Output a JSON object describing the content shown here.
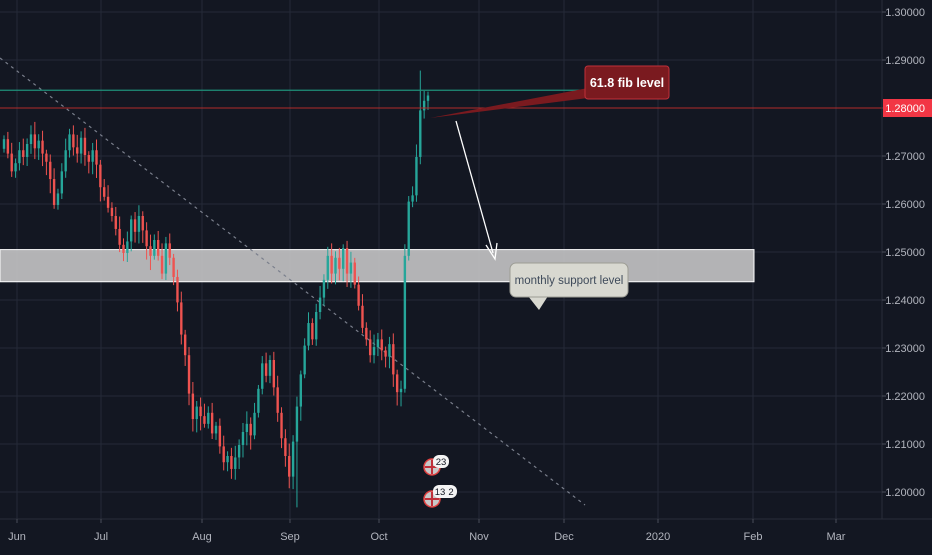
{
  "colors": {
    "background": "#131722",
    "grid": "#242a38",
    "up_candle": "#26a69a",
    "down_candle": "#ef5350",
    "axis_text": "#b2b5be",
    "current_price_line": "#b22b2b",
    "current_price_tag": "#f23645",
    "fib_line": "#1f8f7a",
    "support_zone": "#c9c9c9",
    "trendline": "#7a7f8c",
    "callout_red": "#7a1a1f",
    "callout_grey": "#d8d8d0"
  },
  "annotations": {
    "fib_label": "61.8 fib level",
    "support_label": "monthly support level",
    "event_badge_top": "23",
    "event_badge_bottom": "13",
    "event_badge_bottom_extra": "2"
  },
  "chart_data": {
    "type": "candlestick",
    "x_ticks": [
      "Jun",
      "Jul",
      "Aug",
      "Sep",
      "Oct",
      "Nov",
      "Dec",
      "2020",
      "Feb",
      "Mar"
    ],
    "y_ticks": [
      "1.20000",
      "1.21000",
      "1.22000",
      "1.23000",
      "1.24000",
      "1.25000",
      "1.26000",
      "1.27000",
      "1.28000",
      "1.29000",
      "1.30000"
    ],
    "ylim": [
      1.1915,
      1.3055
    ],
    "current_price": "1.28000",
    "fib_level": 1.2837,
    "support_zone": [
      1.2438,
      1.2505
    ],
    "closes": [
      1.2735,
      1.2705,
      1.2668,
      1.2685,
      1.2712,
      1.2698,
      1.2725,
      1.2745,
      1.2716,
      1.2732,
      1.2705,
      1.2688,
      1.2652,
      1.2598,
      1.2622,
      1.2668,
      1.2712,
      1.2745,
      1.2718,
      1.2705,
      1.2738,
      1.2702,
      1.2688,
      1.2712,
      1.2682,
      1.2635,
      1.2615,
      1.2592,
      1.2575,
      1.2548,
      1.2515,
      1.2498,
      1.2522,
      1.2568,
      1.2542,
      1.2575,
      1.2545,
      1.2512,
      1.2492,
      1.2525,
      1.2492,
      1.2455,
      1.2518,
      1.2488,
      1.2448,
      1.2395,
      1.2328,
      1.2285,
      1.2205,
      1.2152,
      1.2178,
      1.2158,
      1.2142,
      1.2165,
      1.2122,
      1.2138,
      1.2095,
      1.2062,
      1.2075,
      1.2048,
      1.2072,
      1.2098,
      1.2125,
      1.2142,
      1.2118,
      1.2165,
      1.2215,
      1.2268,
      1.2242,
      1.2275,
      1.2218,
      1.2165,
      1.2112,
      1.2075,
      1.2032,
      1.2105,
      1.2178,
      1.2245,
      1.2305,
      1.2352,
      1.2318,
      1.2375,
      1.2405,
      1.2442,
      1.2492,
      1.2455,
      1.2488,
      1.2465,
      1.2508,
      1.2455,
      1.2478,
      1.2432,
      1.2388,
      1.2342,
      1.2318,
      1.2285,
      1.2302,
      1.2318,
      1.2295,
      1.2282,
      1.2308,
      1.2245,
      1.2208,
      1.2215,
      1.2492,
      1.2605,
      1.2618,
      1.2698,
      1.2795,
      1.2815,
      1.2826
    ],
    "x_label": "",
    "y_label": ""
  }
}
